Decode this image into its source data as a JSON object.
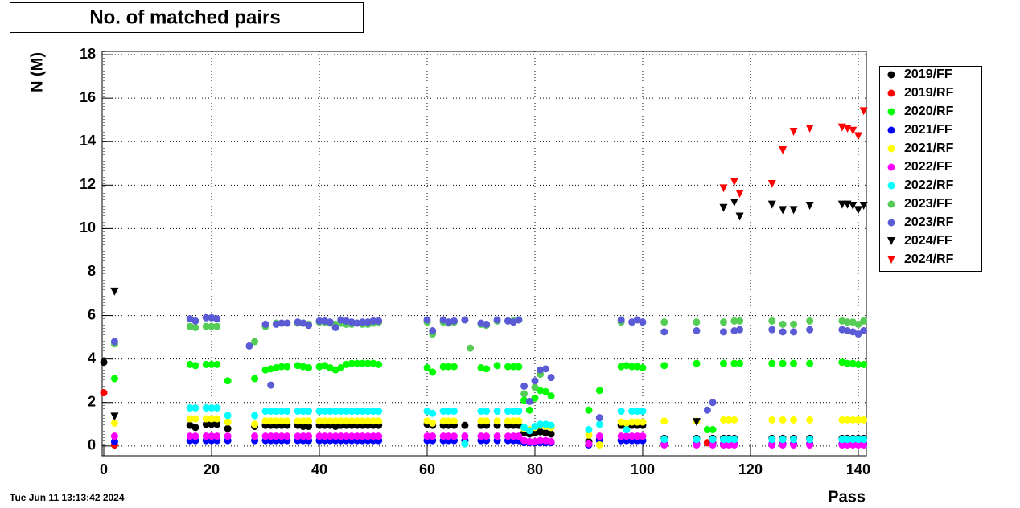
{
  "chart_data": {
    "type": "scatter",
    "title": "No. of matched pairs",
    "x_label": "Pass",
    "y_label": "N (M)",
    "timestamp": "Tue Jun 11 13:13:42 2024",
    "xlim": [
      -0.3,
      141.5
    ],
    "ylim": [
      -0.45,
      18.15
    ],
    "xticks": [
      0,
      20,
      40,
      60,
      80,
      100,
      120,
      140
    ],
    "yticks": [
      0,
      2,
      4,
      6,
      8,
      10,
      12,
      14,
      16,
      18
    ],
    "grid": true,
    "legend_position": "right",
    "series": [
      {
        "name": "2019/FF",
        "color": "#000000",
        "marker": "circle",
        "x": [
          0,
          2,
          16,
          17,
          19,
          20,
          21,
          23,
          28,
          30,
          31,
          32,
          33,
          34,
          36,
          37,
          38,
          40,
          41,
          42,
          43,
          44,
          45,
          46,
          47,
          48,
          49,
          50,
          51,
          60,
          61,
          63,
          64,
          65,
          67,
          70,
          71,
          73,
          75,
          76,
          77,
          78,
          79,
          80,
          81,
          82,
          83,
          90,
          92,
          96,
          97,
          98,
          99,
          100,
          104,
          110,
          113,
          115,
          116,
          117,
          124,
          126,
          128,
          131,
          137,
          138,
          139,
          140,
          141
        ],
        "values": [
          3.85,
          0.05,
          0.95,
          0.85,
          1.0,
          1.0,
          1.0,
          0.8,
          0.9,
          0.95,
          0.95,
          0.95,
          0.95,
          0.95,
          0.95,
          0.9,
          0.9,
          0.95,
          0.95,
          0.95,
          0.9,
          0.95,
          0.95,
          0.95,
          0.95,
          0.95,
          0.95,
          0.95,
          0.95,
          1.0,
          0.95,
          0.95,
          0.95,
          0.95,
          0.95,
          0.95,
          0.95,
          0.95,
          0.95,
          0.95,
          0.95,
          0.6,
          0.55,
          0.6,
          0.65,
          0.6,
          0.55,
          0.2,
          0.3,
          0.95,
          0.95,
          0.95,
          0.95,
          0.95,
          0.35,
          0.35,
          0.35,
          0.35,
          0.35,
          0.35,
          0.35,
          0.35,
          0.35,
          0.35,
          0.35,
          0.35,
          0.35,
          0.35,
          0.35
        ]
      },
      {
        "name": "2019/RF",
        "color": "#ff0000",
        "marker": "circle",
        "x": [
          0,
          2,
          112,
          113
        ],
        "values": [
          2.45,
          0.05,
          0.15,
          0.15
        ]
      },
      {
        "name": "2020/RF",
        "color": "#00ff00",
        "marker": "circle",
        "x": [
          2,
          16,
          17,
          19,
          20,
          21,
          23,
          28,
          30,
          31,
          32,
          33,
          34,
          36,
          37,
          38,
          40,
          41,
          42,
          43,
          44,
          45,
          46,
          47,
          48,
          49,
          50,
          51,
          60,
          61,
          63,
          64,
          65,
          70,
          71,
          73,
          75,
          76,
          77,
          78,
          79,
          80,
          81,
          82,
          83,
          90,
          92,
          96,
          97,
          98,
          99,
          100,
          104,
          110,
          112,
          113,
          115,
          117,
          118,
          124,
          126,
          128,
          131,
          137,
          138,
          139,
          140,
          141
        ],
        "values": [
          3.1,
          3.75,
          3.7,
          3.75,
          3.75,
          3.75,
          3.0,
          3.1,
          3.5,
          3.55,
          3.6,
          3.65,
          3.65,
          3.7,
          3.65,
          3.6,
          3.65,
          3.7,
          3.6,
          3.5,
          3.6,
          3.75,
          3.8,
          3.8,
          3.8,
          3.8,
          3.8,
          3.75,
          3.6,
          3.4,
          3.65,
          3.65,
          3.65,
          3.6,
          3.55,
          3.7,
          3.65,
          3.65,
          3.65,
          2.1,
          1.65,
          2.2,
          2.55,
          2.5,
          2.3,
          1.65,
          2.55,
          3.65,
          3.7,
          3.65,
          3.65,
          3.6,
          3.7,
          3.8,
          0.75,
          0.75,
          3.8,
          3.8,
          3.8,
          3.8,
          3.8,
          3.8,
          3.8,
          3.85,
          3.8,
          3.8,
          3.75,
          3.75
        ]
      },
      {
        "name": "2021/FF",
        "color": "#0000ff",
        "marker": "circle",
        "x": [
          2,
          16,
          17,
          19,
          20,
          21,
          23,
          28,
          30,
          31,
          32,
          33,
          34,
          36,
          37,
          38,
          40,
          41,
          42,
          43,
          44,
          45,
          46,
          47,
          48,
          49,
          50,
          51,
          60,
          61,
          63,
          64,
          65,
          67,
          70,
          71,
          73,
          75,
          76,
          77,
          78,
          79,
          80,
          81,
          82,
          83,
          90,
          92,
          96,
          97,
          98,
          99,
          100,
          104,
          110,
          113,
          115,
          116,
          117,
          124,
          126,
          128,
          131,
          137,
          138,
          139,
          140,
          141
        ],
        "values": [
          0.2,
          0.25,
          0.25,
          0.25,
          0.25,
          0.25,
          0.25,
          0.25,
          0.25,
          0.25,
          0.25,
          0.25,
          0.25,
          0.25,
          0.25,
          0.25,
          0.25,
          0.25,
          0.25,
          0.25,
          0.25,
          0.25,
          0.25,
          0.25,
          0.25,
          0.25,
          0.25,
          0.25,
          0.25,
          0.25,
          0.25,
          0.25,
          0.25,
          0.25,
          0.25,
          0.25,
          0.25,
          0.25,
          0.25,
          0.25,
          0.15,
          0.15,
          0.15,
          0.15,
          0.15,
          0.15,
          0.05,
          0.25,
          0.25,
          0.25,
          0.25,
          0.25,
          0.25,
          0.1,
          0.1,
          0.1,
          0.1,
          0.1,
          0.1,
          0.1,
          0.1,
          0.1,
          0.1,
          0.1,
          0.1,
          0.1,
          0.1,
          0.1
        ]
      },
      {
        "name": "2021/RF",
        "color": "#ffff00",
        "marker": "circle",
        "x": [
          2,
          16,
          17,
          19,
          20,
          21,
          23,
          28,
          30,
          31,
          32,
          33,
          34,
          36,
          37,
          38,
          40,
          41,
          42,
          43,
          44,
          45,
          46,
          47,
          48,
          49,
          50,
          51,
          60,
          61,
          63,
          64,
          65,
          67,
          70,
          71,
          73,
          75,
          76,
          77,
          78,
          79,
          80,
          81,
          82,
          83,
          90,
          92,
          96,
          97,
          98,
          99,
          100,
          104,
          110,
          113,
          115,
          116,
          117,
          124,
          126,
          128,
          131,
          137,
          138,
          139,
          140,
          141
        ],
        "values": [
          1.05,
          1.25,
          1.25,
          1.25,
          1.25,
          1.25,
          1.1,
          1.0,
          1.15,
          1.15,
          1.15,
          1.15,
          1.15,
          1.15,
          1.15,
          1.15,
          1.15,
          1.15,
          1.15,
          1.15,
          1.15,
          1.15,
          1.15,
          1.15,
          1.15,
          1.15,
          1.15,
          1.15,
          1.15,
          1.05,
          1.15,
          1.15,
          1.15,
          0.1,
          1.15,
          1.15,
          1.15,
          1.15,
          1.15,
          1.15,
          0.8,
          0.75,
          0.85,
          0.95,
          0.9,
          0.85,
          0.5,
          0.05,
          1.1,
          1.05,
          1.1,
          1.1,
          1.1,
          1.15,
          1.15,
          0.3,
          1.2,
          1.2,
          1.2,
          1.2,
          1.2,
          1.2,
          1.2,
          1.2,
          1.2,
          1.2,
          1.2,
          1.2
        ]
      },
      {
        "name": "2022/FF",
        "color": "#ff00ff",
        "marker": "circle",
        "x": [
          2,
          16,
          17,
          19,
          20,
          21,
          23,
          28,
          30,
          31,
          32,
          33,
          34,
          36,
          37,
          38,
          40,
          41,
          42,
          43,
          44,
          45,
          46,
          47,
          48,
          49,
          50,
          51,
          60,
          61,
          63,
          64,
          65,
          67,
          70,
          71,
          73,
          75,
          76,
          77,
          78,
          79,
          80,
          81,
          82,
          83,
          90,
          92,
          96,
          97,
          98,
          99,
          100,
          104,
          110,
          113,
          115,
          116,
          117,
          124,
          126,
          128,
          131,
          137,
          138,
          139,
          140,
          141
        ],
        "values": [
          0.45,
          0.45,
          0.45,
          0.45,
          0.45,
          0.45,
          0.45,
          0.45,
          0.45,
          0.45,
          0.45,
          0.45,
          0.45,
          0.45,
          0.45,
          0.45,
          0.45,
          0.45,
          0.45,
          0.45,
          0.45,
          0.45,
          0.45,
          0.45,
          0.45,
          0.45,
          0.45,
          0.45,
          0.45,
          0.45,
          0.45,
          0.45,
          0.45,
          0.45,
          0.45,
          0.45,
          0.45,
          0.45,
          0.45,
          0.45,
          0.25,
          0.2,
          0.2,
          0.25,
          0.25,
          0.2,
          0.1,
          0.45,
          0.45,
          0.45,
          0.45,
          0.45,
          0.45,
          0.05,
          0.05,
          0.05,
          0.05,
          0.05,
          0.05,
          0.05,
          0.05,
          0.05,
          0.05,
          0.05,
          0.05,
          0.05,
          0.05,
          0.05
        ]
      },
      {
        "name": "2022/RF",
        "color": "#00ffff",
        "marker": "circle",
        "x": [
          16,
          17,
          19,
          20,
          21,
          23,
          28,
          30,
          31,
          32,
          33,
          34,
          36,
          37,
          38,
          40,
          41,
          42,
          43,
          44,
          45,
          46,
          47,
          48,
          49,
          50,
          51,
          60,
          61,
          63,
          64,
          65,
          67,
          70,
          71,
          73,
          75,
          76,
          77,
          78,
          79,
          80,
          81,
          82,
          83,
          90,
          92,
          96,
          97,
          98,
          99,
          100,
          104,
          110,
          113,
          115,
          116,
          117,
          124,
          126,
          128,
          131,
          137,
          138,
          139,
          140,
          141
        ],
        "values": [
          1.75,
          1.75,
          1.75,
          1.75,
          1.75,
          1.4,
          1.4,
          1.6,
          1.6,
          1.6,
          1.6,
          1.6,
          1.6,
          1.6,
          1.6,
          1.6,
          1.6,
          1.6,
          1.6,
          1.6,
          1.6,
          1.6,
          1.6,
          1.6,
          1.6,
          1.6,
          1.6,
          1.6,
          1.5,
          1.6,
          1.6,
          1.6,
          0.1,
          1.6,
          1.6,
          1.6,
          1.6,
          1.6,
          1.6,
          0.85,
          0.7,
          0.9,
          1.0,
          1.0,
          0.95,
          0.75,
          1.0,
          1.6,
          0.75,
          1.6,
          1.6,
          1.6,
          0.3,
          0.3,
          0.3,
          0.3,
          0.3,
          0.3,
          0.3,
          0.3,
          0.3,
          0.3,
          0.3,
          0.3,
          0.3,
          0.3,
          0.3
        ]
      },
      {
        "name": "2023/FF",
        "color": "#55cc55",
        "marker": "circle",
        "x": [
          2,
          16,
          17,
          19,
          20,
          21,
          28,
          30,
          32,
          33,
          34,
          36,
          37,
          38,
          40,
          41,
          42,
          43,
          44,
          45,
          46,
          47,
          48,
          49,
          50,
          51,
          60,
          61,
          63,
          64,
          65,
          68,
          70,
          71,
          73,
          75,
          76,
          77,
          78,
          80,
          81,
          96,
          104,
          110,
          115,
          117,
          118,
          124,
          126,
          128,
          131,
          137,
          138,
          139,
          140,
          141
        ],
        "values": [
          4.7,
          5.5,
          5.45,
          5.5,
          5.5,
          5.5,
          4.8,
          5.5,
          5.65,
          5.65,
          5.65,
          5.65,
          5.65,
          5.6,
          5.7,
          5.7,
          5.65,
          5.6,
          5.65,
          5.6,
          5.6,
          5.65,
          5.6,
          5.6,
          5.65,
          5.7,
          5.7,
          5.15,
          5.7,
          5.65,
          5.7,
          4.5,
          5.6,
          5.55,
          5.75,
          5.75,
          5.75,
          5.8,
          2.4,
          2.7,
          3.3,
          5.7,
          5.7,
          5.7,
          5.7,
          5.75,
          5.75,
          5.75,
          5.6,
          5.6,
          5.75,
          5.75,
          5.7,
          5.7,
          5.6,
          5.75
        ]
      },
      {
        "name": "2023/RF",
        "color": "#5b5bd6",
        "marker": "circle",
        "x": [
          2,
          16,
          17,
          19,
          20,
          21,
          27,
          30,
          31,
          32,
          33,
          34,
          36,
          37,
          38,
          40,
          41,
          42,
          43,
          44,
          45,
          46,
          47,
          48,
          49,
          50,
          51,
          60,
          61,
          63,
          64,
          65,
          67,
          70,
          71,
          73,
          75,
          76,
          77,
          78,
          79,
          80,
          81,
          82,
          83,
          92,
          96,
          98,
          99,
          100,
          104,
          110,
          112,
          113,
          115,
          117,
          118,
          124,
          126,
          128,
          131,
          137,
          138,
          139,
          140,
          141
        ],
        "values": [
          4.8,
          5.85,
          5.75,
          5.9,
          5.9,
          5.85,
          4.6,
          5.6,
          2.8,
          5.6,
          5.65,
          5.65,
          5.7,
          5.65,
          5.55,
          5.75,
          5.75,
          5.7,
          5.45,
          5.8,
          5.75,
          5.7,
          5.65,
          5.7,
          5.7,
          5.75,
          5.75,
          5.8,
          5.3,
          5.8,
          5.7,
          5.75,
          5.8,
          5.65,
          5.6,
          5.8,
          5.75,
          5.7,
          5.8,
          2.75,
          2.05,
          3.0,
          3.5,
          3.55,
          3.15,
          1.3,
          5.8,
          5.7,
          5.8,
          5.7,
          5.25,
          5.3,
          1.65,
          2.0,
          5.25,
          5.3,
          5.35,
          5.35,
          5.25,
          5.25,
          5.35,
          5.35,
          5.3,
          5.25,
          5.15,
          5.3
        ]
      },
      {
        "name": "2024/FF",
        "color": "#000000",
        "marker": "triangle-down",
        "x": [
          2,
          2,
          110,
          115,
          117,
          118,
          124,
          126,
          128,
          131,
          137,
          138,
          139,
          140,
          141
        ],
        "values": [
          7.1,
          1.35,
          1.1,
          10.95,
          11.2,
          10.55,
          11.1,
          10.85,
          10.85,
          11.05,
          11.1,
          11.1,
          11.05,
          10.85,
          11.05
        ]
      },
      {
        "name": "2024/RF",
        "color": "#ff0000",
        "marker": "triangle-down",
        "x": [
          115,
          117,
          118,
          124,
          126,
          128,
          131,
          137,
          138,
          139,
          140,
          141
        ],
        "values": [
          11.85,
          12.15,
          11.6,
          12.05,
          13.6,
          14.45,
          14.6,
          14.65,
          14.6,
          14.5,
          14.25,
          15.4
        ]
      }
    ]
  }
}
